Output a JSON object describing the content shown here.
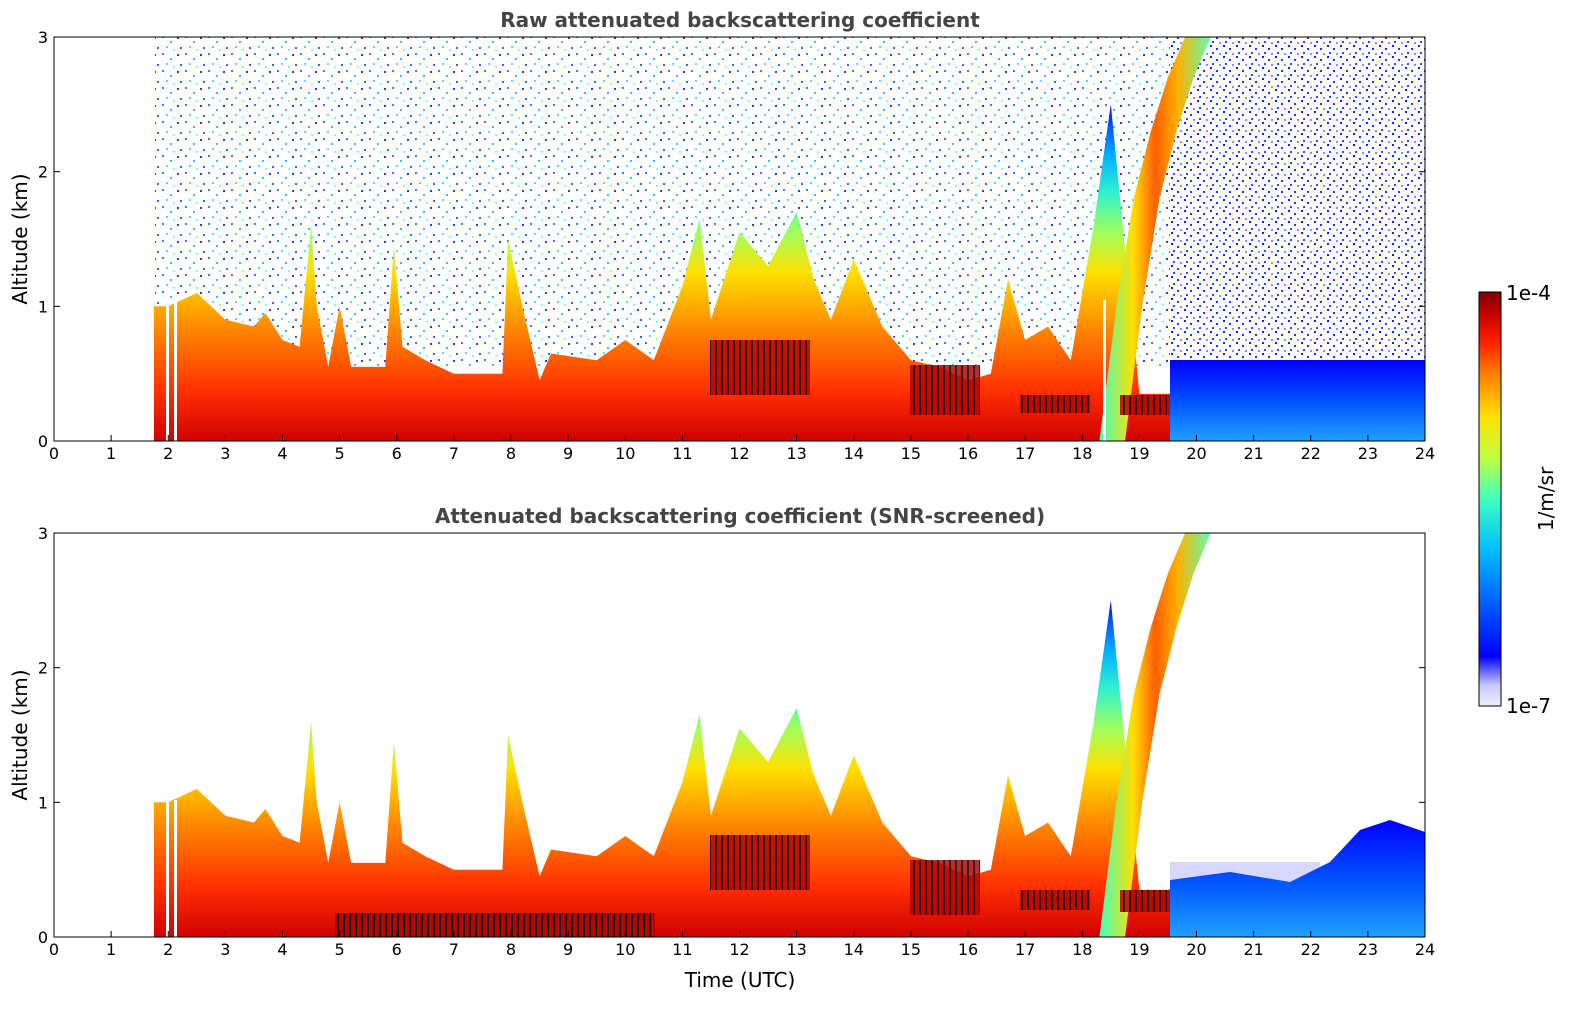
{
  "colors": {
    "scale": [
      "#f0f0ff",
      "#c8c8ff",
      "#0000ff",
      "#0060ff",
      "#00c0ff",
      "#40ffc0",
      "#c0ff40",
      "#ffe000",
      "#ff8000",
      "#ff2000",
      "#c00000",
      "#800000"
    ],
    "screened_black": "#000000"
  },
  "chart_data": [
    {
      "type": "heatmap",
      "title": "Raw attenuated backscattering coefficient",
      "xlabel": "",
      "ylabel": "Altitude (km)",
      "xlim": [
        0,
        24
      ],
      "ylim": [
        0,
        3
      ],
      "xticks": [
        "0",
        "1",
        "2",
        "3",
        "4",
        "5",
        "6",
        "7",
        "8",
        "9",
        "10",
        "11",
        "12",
        "13",
        "14",
        "15",
        "16",
        "17",
        "18",
        "19",
        "20",
        "21",
        "22",
        "23",
        "24"
      ],
      "yticks": [
        "0",
        "1",
        "2",
        "3"
      ],
      "boundary_layer_top_km": [
        [
          1.75,
          1.0
        ],
        [
          2.0,
          1.0
        ],
        [
          2.5,
          1.1
        ],
        [
          3.0,
          0.9
        ],
        [
          3.5,
          0.85
        ],
        [
          3.7,
          0.95
        ],
        [
          4.0,
          0.75
        ],
        [
          4.3,
          0.7
        ],
        [
          4.5,
          1.6
        ],
        [
          4.6,
          1.0
        ],
        [
          4.8,
          0.55
        ],
        [
          5.0,
          1.0
        ],
        [
          5.2,
          0.55
        ],
        [
          5.5,
          0.55
        ],
        [
          5.8,
          0.55
        ],
        [
          5.95,
          1.45
        ],
        [
          6.1,
          0.7
        ],
        [
          6.5,
          0.6
        ],
        [
          7.0,
          0.5
        ],
        [
          7.5,
          0.5
        ],
        [
          7.85,
          0.5
        ],
        [
          7.95,
          1.5
        ],
        [
          8.2,
          1.0
        ],
        [
          8.5,
          0.45
        ],
        [
          8.7,
          0.65
        ],
        [
          9.5,
          0.6
        ],
        [
          10.0,
          0.75
        ],
        [
          10.5,
          0.6
        ],
        [
          11.0,
          1.15
        ],
        [
          11.3,
          1.65
        ],
        [
          11.5,
          0.9
        ],
        [
          12.0,
          1.55
        ],
        [
          12.5,
          1.3
        ],
        [
          13.0,
          1.7
        ],
        [
          13.3,
          1.2
        ],
        [
          13.6,
          0.9
        ],
        [
          14.0,
          1.35
        ],
        [
          14.5,
          0.85
        ],
        [
          15.0,
          0.6
        ],
        [
          15.5,
          0.55
        ],
        [
          16.0,
          0.45
        ],
        [
          16.4,
          0.5
        ],
        [
          16.7,
          1.2
        ],
        [
          17.0,
          0.75
        ],
        [
          17.4,
          0.85
        ],
        [
          17.8,
          0.6
        ],
        [
          18.2,
          1.6
        ],
        [
          18.5,
          2.5
        ],
        [
          19.0,
          0.35
        ],
        [
          19.5,
          0.35
        ],
        [
          20.0,
          0.4
        ],
        [
          21.0,
          0.4
        ],
        [
          21.5,
          0.4
        ],
        [
          22.0,
          0.3
        ],
        [
          22.5,
          0.55
        ],
        [
          23.0,
          0.55
        ],
        [
          23.5,
          0.6
        ],
        [
          24.0,
          0.6
        ]
      ],
      "plume_km": [
        [
          18.3,
          0.0
        ],
        [
          18.6,
          1.0
        ],
        [
          18.9,
          1.8
        ],
        [
          19.2,
          2.3
        ],
        [
          19.5,
          2.7
        ],
        [
          19.8,
          3.0
        ]
      ]
    },
    {
      "type": "heatmap",
      "title": "Attenuated backscattering coefficient (SNR-screened)",
      "xlabel": "Time (UTC)",
      "ylabel": "Altitude (km)",
      "xlim": [
        0,
        24
      ],
      "ylim": [
        0,
        3
      ],
      "xticks": [
        "0",
        "1",
        "2",
        "3",
        "4",
        "5",
        "6",
        "7",
        "8",
        "9",
        "10",
        "11",
        "12",
        "13",
        "14",
        "15",
        "16",
        "17",
        "18",
        "19",
        "20",
        "21",
        "22",
        "23",
        "24"
      ],
      "yticks": [
        "0",
        "1",
        "2",
        "3"
      ]
    }
  ],
  "colorbar": {
    "label": "1/m/sr",
    "max_label": "1e-4",
    "min_label": "1e-7"
  }
}
